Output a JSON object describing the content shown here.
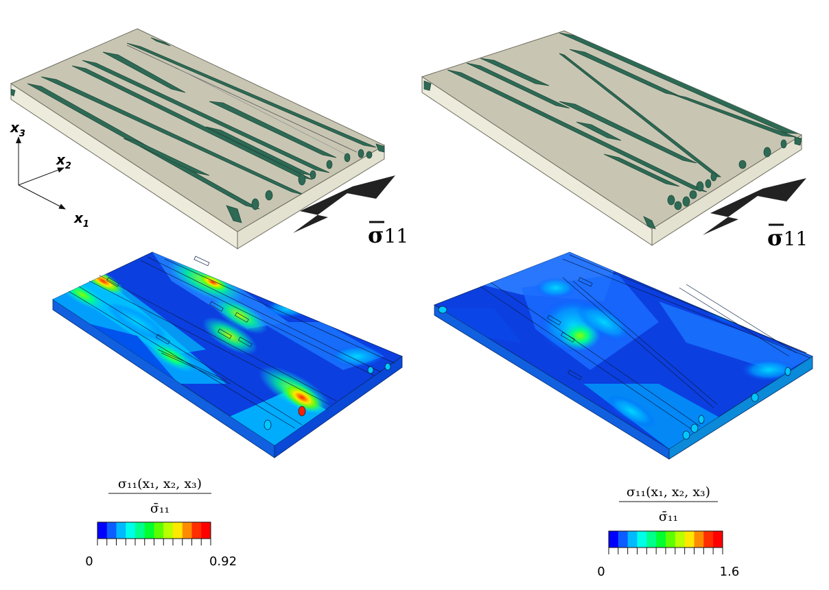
{
  "axes": {
    "x1": {
      "var": "x",
      "sub": "1"
    },
    "x2": {
      "var": "x",
      "sub": "2"
    },
    "x3": {
      "var": "x",
      "sub": "3"
    }
  },
  "load_label": {
    "symbol": "σ",
    "sub": "11"
  },
  "legend_left": {
    "numerator": "σ₁₁(x₁, x₂, x₃)",
    "denominator": "σ̄₁₁",
    "min": "0",
    "max": "0.92"
  },
  "legend_right": {
    "numerator": "σ₁₁(x₁, x₂, x₃)",
    "denominator": "σ̄₁₁",
    "min": "0",
    "max": "1.6"
  },
  "colors": {
    "matrix_top": "#c8c6b3",
    "matrix_side": "#ecebdc",
    "fiber": "#2e6a55",
    "arrow": "#222222",
    "colormap": [
      "#0000ff",
      "#0c5dff",
      "#00b9ff",
      "#00ffe8",
      "#00ff8b",
      "#00ff2e",
      "#5dff00",
      "#b9ff00",
      "#ffe800",
      "#ff8b00",
      "#ff2e00",
      "#ff0000"
    ]
  }
}
